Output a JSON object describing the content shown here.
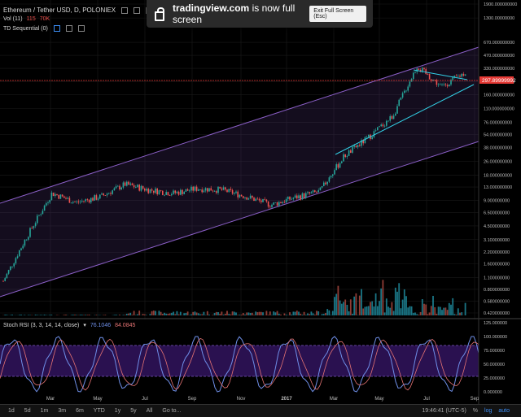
{
  "legend": {
    "title": "Ethereum / Tether USD, D, POLONIEX",
    "close_value": "297.89999992",
    "vol_label": "Vol (11)",
    "vol_values": [
      "115",
      "70K"
    ],
    "td_label": "TD Sequential (0)",
    "stoch_label": "Stoch RSI (3, 3, 14, 14, close)",
    "stoch_values": [
      "76.1046",
      "84.0845"
    ]
  },
  "banner": {
    "site": "tradingview.com",
    "message": "is now full screen",
    "exit_label": "Exit Full Screen (Esc)"
  },
  "price_axis": [
    "1900.000000000",
    "1300.00000000",
    "670.000000000",
    "470.000000000",
    "330.000000000",
    "230.000000000",
    "160.000000000",
    "110.000000000",
    "76.000000000",
    "54.000000000",
    "38.000000000",
    "26.000000000",
    "18.000000000",
    "13.000000000",
    "9.000000000",
    "6.500000000",
    "4.500000000",
    "3.100000000",
    "2.200000000",
    "1.600000000",
    "1.100000000",
    "0.800000000",
    "0.580000000",
    "0.420000000"
  ],
  "rsi_axis": [
    "125.000000",
    "100.000000",
    "75.000000",
    "50.000000",
    "25.000000",
    "0.000000"
  ],
  "time_axis": [
    "Mar",
    "May",
    "Jul",
    "Sep",
    "Nov",
    "2017",
    "Mar",
    "May",
    "Jul",
    "Sep"
  ],
  "bottom": {
    "ranges": [
      "1d",
      "5d",
      "1m",
      "3m",
      "6m",
      "YTD",
      "1y",
      "5y",
      "All",
      "Go to..."
    ],
    "clock": "19:46:41 (UTC-5)",
    "pct": "%",
    "log": "log",
    "auto": "auto"
  },
  "colors": {
    "up": "#26a69a",
    "down": "#ef5350",
    "channel": "#9c27b0",
    "triangle": "#33d0e6",
    "price_line": "#e53935",
    "rsi_fill": "#2a1150"
  },
  "chart_data": {
    "type": "line",
    "title": "Ethereum / Tether USD, D, POLONIEX",
    "y_scale": "log",
    "x": [
      "2016-01",
      "2016-02",
      "2016-03",
      "2016-04",
      "2016-05",
      "2016-06",
      "2016-07",
      "2016-08",
      "2016-09",
      "2016-10",
      "2016-11",
      "2016-12",
      "2017-01",
      "2017-02",
      "2017-03",
      "2017-04",
      "2017-05",
      "2017-06",
      "2017-07",
      "2017-08"
    ],
    "series": [
      {
        "values": [
          1.0,
          3.5,
          11,
          8.5,
          10,
          14,
          12,
          11,
          12.5,
          12,
          10,
          8,
          9.8,
          11.5,
          30,
          50,
          90,
          350,
          200,
          298
        ]
      }
    ],
    "ylim": [
      0.42,
      1900
    ],
    "last_price": 297.89999992
  }
}
